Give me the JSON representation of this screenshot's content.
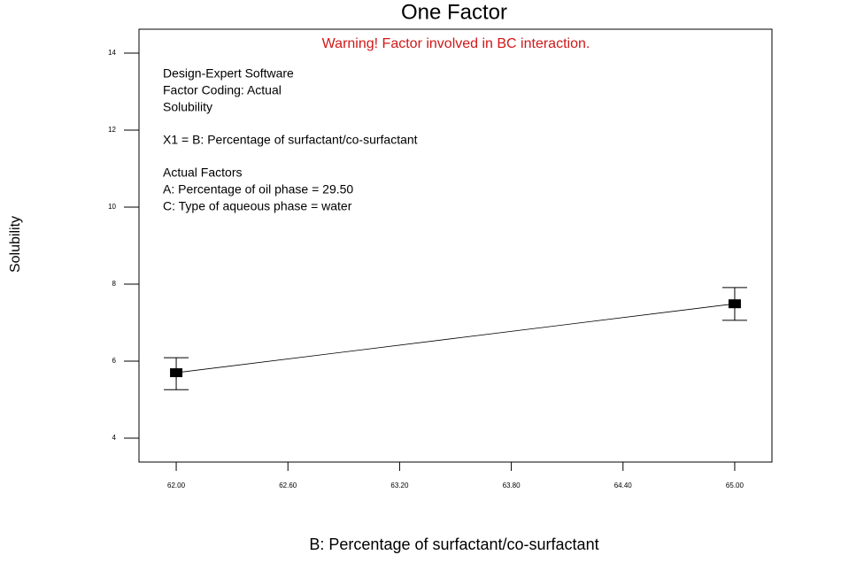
{
  "chart_data": {
    "type": "line",
    "title": "One Factor",
    "warning": "Warning! Factor involved in BC interaction.",
    "annotations": [
      [
        "Design-Expert  Software",
        "Factor Coding: Actual",
        "Solubility"
      ],
      [
        "X1 = B: Percentage of surfactant/co-surfactant"
      ],
      [
        "Actual Factors",
        "A: Percentage of oil phase = 29.50",
        "C: Type of aqueous phase = water"
      ]
    ],
    "x_label": "B: Percentage of surfactant/co-surfactant",
    "y_label": "Solubility",
    "x": [
      62.0,
      65.0
    ],
    "series": [
      {
        "name": "Solubility",
        "color": "#000000",
        "values": [
          5.7,
          7.49
        ],
        "lower": [
          5.26,
          7.06
        ],
        "upper": [
          6.09,
          7.91
        ]
      }
    ],
    "xlim": [
      61.8,
      65.2
    ],
    "xticks": [
      {
        "value": 62.0,
        "label": "62.00"
      },
      {
        "value": 62.6,
        "label": "62.60"
      },
      {
        "value": 63.2,
        "label": "63.20"
      },
      {
        "value": 63.8,
        "label": "63.80"
      },
      {
        "value": 64.4,
        "label": "64.40"
      },
      {
        "value": 65.0,
        "label": "65.00"
      }
    ],
    "ylim": [
      3.38,
      14.62
    ],
    "yticks": [
      4,
      6,
      8,
      10,
      12,
      14
    ]
  }
}
